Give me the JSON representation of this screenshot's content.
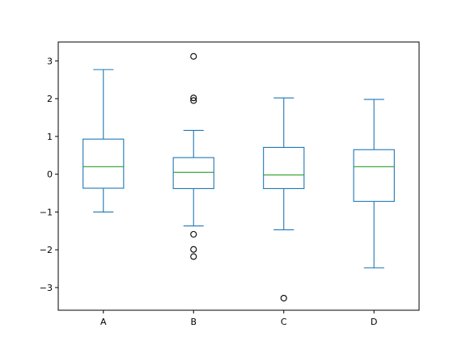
{
  "chart_data": {
    "type": "box",
    "title": "",
    "xlabel": "",
    "ylabel": "",
    "categories": [
      "A",
      "B",
      "C",
      "D"
    ],
    "boxes": [
      {
        "name": "A",
        "whisker_low": -1.0,
        "q1": -0.37,
        "median": 0.2,
        "q3": 0.93,
        "whisker_high": 2.77,
        "outliers": []
      },
      {
        "name": "B",
        "whisker_low": -1.37,
        "q1": -0.38,
        "median": 0.05,
        "q3": 0.44,
        "whisker_high": 1.16,
        "outliers": [
          3.12,
          2.02,
          1.95,
          -1.59,
          -1.99,
          -2.18
        ]
      },
      {
        "name": "C",
        "whisker_low": -1.47,
        "q1": -0.38,
        "median": -0.02,
        "q3": 0.71,
        "whisker_high": 2.02,
        "outliers": [
          -3.28
        ]
      },
      {
        "name": "D",
        "whisker_low": -2.48,
        "q1": -0.72,
        "median": 0.2,
        "q3": 0.65,
        "whisker_high": 1.98,
        "outliers": []
      }
    ],
    "ylim": [
      -3.6,
      3.5
    ],
    "yticks": [
      3,
      2,
      1,
      0,
      -1,
      -2,
      -3
    ],
    "ytick_labels": [
      "3",
      "2",
      "1",
      "0",
      "−1",
      "−2",
      "−3"
    ],
    "grid": false,
    "colors": {
      "box": "#1f77b4",
      "median": "#2ca02c",
      "outlier": "#000000"
    }
  }
}
